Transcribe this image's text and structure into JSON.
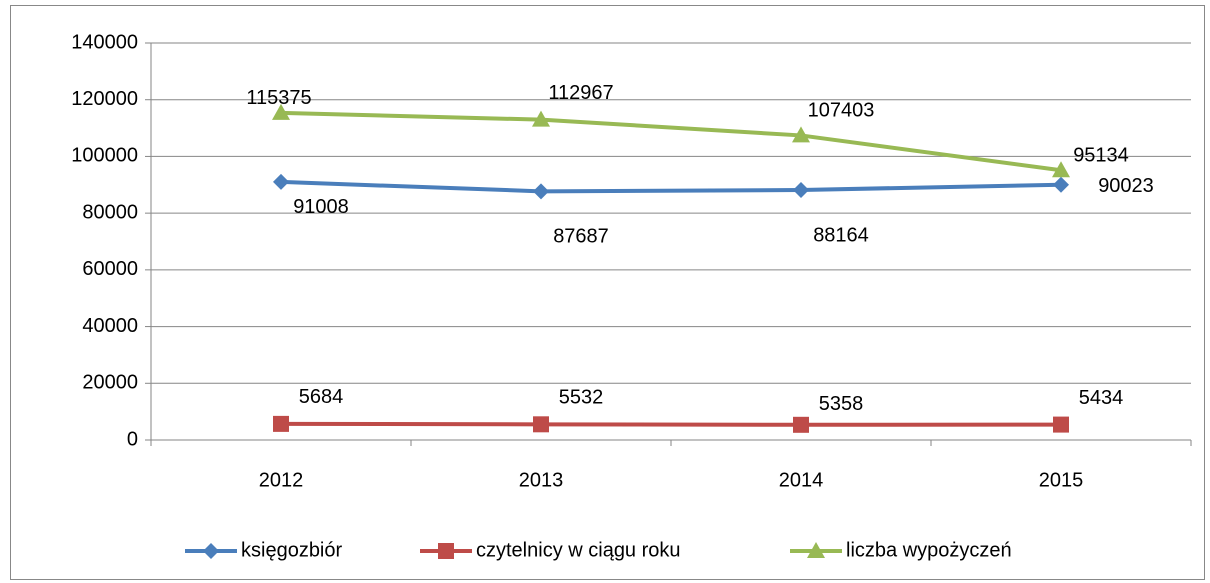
{
  "chart_data": {
    "type": "line",
    "categories": [
      "2012",
      "2013",
      "2014",
      "2015"
    ],
    "series": [
      {
        "name": "księgozbiór",
        "color": "#4a7ebb",
        "marker": "diamond",
        "values": [
          91008,
          87687,
          88164,
          90023
        ]
      },
      {
        "name": "czytelnicy w ciągu roku",
        "color": "#be4b48",
        "marker": "square",
        "values": [
          5684,
          5532,
          5358,
          5434
        ]
      },
      {
        "name": "liczba wypożyczeń",
        "color": "#98b954",
        "marker": "triangle",
        "values": [
          115375,
          112967,
          107403,
          95134
        ]
      }
    ],
    "ylim": [
      0,
      140000
    ],
    "yticks": [
      0,
      20000,
      40000,
      60000,
      80000,
      100000,
      120000,
      140000
    ],
    "grid": true,
    "legend": "bottom",
    "data_labels": true
  }
}
